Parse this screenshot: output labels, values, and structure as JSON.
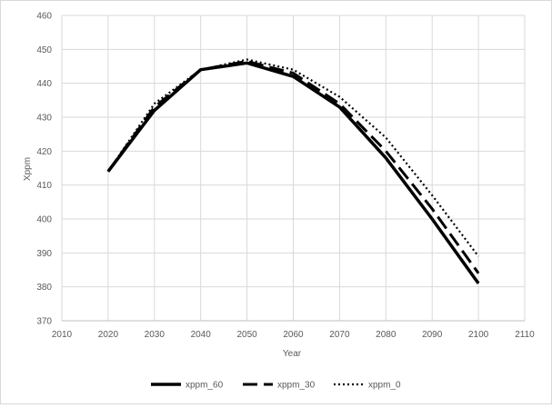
{
  "chart_data": {
    "type": "line",
    "title": "",
    "xlabel": "Year",
    "ylabel": "Xppm",
    "xlim": [
      2010,
      2110
    ],
    "ylim": [
      370,
      460
    ],
    "xticks": [
      2010,
      2020,
      2030,
      2040,
      2050,
      2060,
      2070,
      2080,
      2090,
      2100,
      2110
    ],
    "yticks": [
      370,
      380,
      390,
      400,
      410,
      420,
      430,
      440,
      450,
      460
    ],
    "x": [
      2020,
      2030,
      2040,
      2050,
      2060,
      2070,
      2080,
      2090,
      2100
    ],
    "grid": true,
    "legend_position": "bottom",
    "series": [
      {
        "name": "xppm_60",
        "style": "solid",
        "color": "#000000",
        "values": [
          414,
          432,
          444,
          446,
          442,
          433,
          418,
          400,
          381
        ]
      },
      {
        "name": "xppm_30",
        "style": "dashed",
        "color": "#000000",
        "values": [
          414,
          433,
          444,
          446.5,
          443,
          434,
          420,
          403,
          384
        ]
      },
      {
        "name": "xppm_0",
        "style": "dotted",
        "color": "#000000",
        "values": [
          414,
          434,
          444,
          447,
          444,
          436,
          424,
          407,
          389
        ]
      }
    ]
  },
  "colors": {
    "grid": "#d9d9d9",
    "axis": "#bfbfbf",
    "text": "#595959"
  }
}
